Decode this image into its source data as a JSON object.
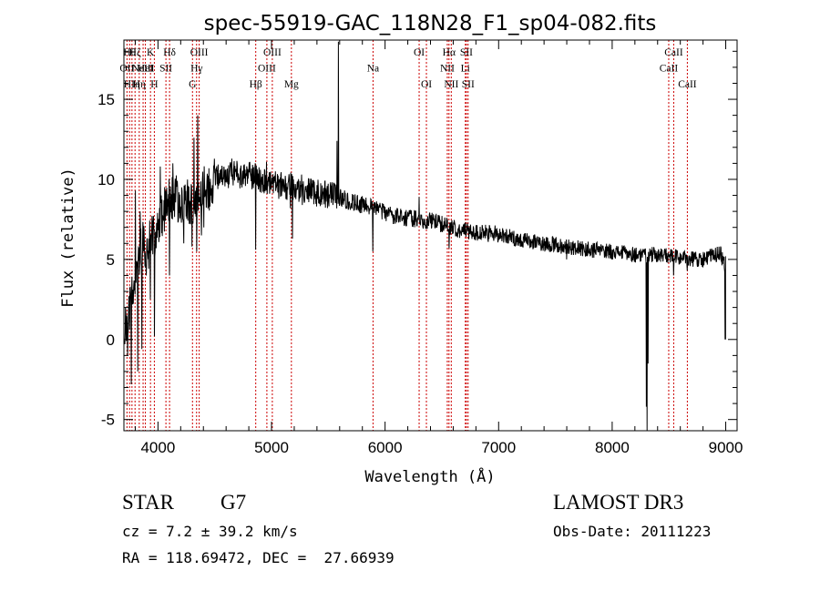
{
  "chart_data": {
    "type": "line",
    "title": "spec-55919-GAC_118N28_F1_sp04-082.fits",
    "xlabel": "Wavelength (Å)",
    "ylabel": "Flux (relative)",
    "xlim": [
      3700,
      9100
    ],
    "ylim": [
      -5.7,
      18.7
    ],
    "xticks": [
      4000,
      5000,
      6000,
      7000,
      8000,
      9000
    ],
    "yticks": [
      -5,
      0,
      5,
      10,
      15
    ],
    "line_color": "#000000",
    "marker_color": "#cc0000",
    "continuum": {
      "x": [
        3700,
        3740,
        3780,
        3820,
        3860,
        3900,
        3950,
        4000,
        4050,
        4100,
        4150,
        4200,
        4250,
        4300,
        4350,
        4400,
        4450,
        4500,
        4550,
        4600,
        4650,
        4700,
        4750,
        4800,
        4850,
        4900,
        4950,
        5000,
        5100,
        5200,
        5300,
        5400,
        5500,
        5600,
        5700,
        5800,
        5900,
        6000,
        6100,
        6200,
        6300,
        6400,
        6500,
        6600,
        6700,
        6800,
        6900,
        7000,
        7200,
        7400,
        7600,
        7800,
        8000,
        8200,
        8400,
        8600,
        8800,
        8950,
        9000
      ],
      "y": [
        1.0,
        1.6,
        3.2,
        5.0,
        6.0,
        5.7,
        6.3,
        7.1,
        8.1,
        8.6,
        9.0,
        8.6,
        8.8,
        8.5,
        9.1,
        9.6,
        9.5,
        9.9,
        10.2,
        10.3,
        10.3,
        10.3,
        10.1,
        10.2,
        10.2,
        10.0,
        9.7,
        9.8,
        9.6,
        9.6,
        9.3,
        9.1,
        9.0,
        8.9,
        8.6,
        8.4,
        8.2,
        7.9,
        7.7,
        7.6,
        7.5,
        7.4,
        7.2,
        7.0,
        6.8,
        6.7,
        6.6,
        6.6,
        6.2,
        6.0,
        5.8,
        5.6,
        5.5,
        5.3,
        5.3,
        5.1,
        5.0,
        5.4,
        4.5
      ]
    },
    "features": [
      {
        "x": 3732,
        "y": -1.0
      },
      {
        "x": 3765,
        "y": -2.8
      },
      {
        "x": 3800,
        "y": 9.3
      },
      {
        "x": 3822,
        "y": -2.0
      },
      {
        "x": 3842,
        "y": 8.0
      },
      {
        "x": 3858,
        "y": -0.6
      },
      {
        "x": 3897,
        "y": 4.0
      },
      {
        "x": 3934,
        "y": 2.5
      },
      {
        "x": 3968,
        "y": 0.2
      },
      {
        "x": 3990,
        "y": 7.2
      },
      {
        "x": 4020,
        "y": 10.8
      },
      {
        "x": 4101,
        "y": 4.0
      },
      {
        "x": 4130,
        "y": 11.0
      },
      {
        "x": 4226,
        "y": 6.0
      },
      {
        "x": 4300,
        "y": 5.8
      },
      {
        "x": 4318,
        "y": 12.6
      },
      {
        "x": 4340,
        "y": 5.5
      },
      {
        "x": 4351,
        "y": 14.0
      },
      {
        "x": 4383,
        "y": 6.5
      },
      {
        "x": 4405,
        "y": 7.0
      },
      {
        "x": 4650,
        "y": 11.3
      },
      {
        "x": 4861,
        "y": 5.6
      },
      {
        "x": 4957,
        "y": 11.1
      },
      {
        "x": 5167,
        "y": 8.2
      },
      {
        "x": 5183,
        "y": 6.3
      },
      {
        "x": 5270,
        "y": 8.4
      },
      {
        "x": 5578,
        "y": 12.4
      },
      {
        "x": 5590,
        "y": 18.6
      },
      {
        "x": 5893,
        "y": 5.5
      },
      {
        "x": 6300,
        "y": 8.9
      },
      {
        "x": 6563,
        "y": 5.7
      },
      {
        "x": 7600,
        "y": 5.0
      },
      {
        "x": 8300,
        "y": -4.2
      },
      {
        "x": 8308,
        "y": -5.7
      },
      {
        "x": 8316,
        "y": -1.5
      },
      {
        "x": 8540,
        "y": 4.0
      },
      {
        "x": 8662,
        "y": 4.3
      },
      {
        "x": 8998,
        "y": 0.0
      }
    ],
    "lines": [
      {
        "x": 3727,
        "label": "OII",
        "row": 1
      },
      {
        "x": 3750,
        "label": "Hθ",
        "row": 0
      },
      {
        "x": 3771,
        "label": "HIη",
        "row": 2
      },
      {
        "x": 3798,
        "label": "Hζ",
        "row": 0
      },
      {
        "x": 3835,
        "label": "Hη",
        "row": 2
      },
      {
        "x": 3869,
        "label": "NeIII",
        "row": 1
      },
      {
        "x": 3889,
        "label": "HeI",
        "row": 1
      },
      {
        "x": 3934,
        "label": "K",
        "row": 0
      },
      {
        "x": 3968,
        "label": "H",
        "row": 2
      },
      {
        "x": 4070,
        "label": "SII",
        "row": 1
      },
      {
        "x": 4102,
        "label": "Hδ",
        "row": 0
      },
      {
        "x": 4304,
        "label": "G",
        "row": 2
      },
      {
        "x": 4340,
        "label": "Hγ",
        "row": 1
      },
      {
        "x": 4363,
        "label": "OIII",
        "row": 0
      },
      {
        "x": 4861,
        "label": "Hβ",
        "row": 2
      },
      {
        "x": 4959,
        "label": "OIII",
        "row": 1
      },
      {
        "x": 5007,
        "label": "OIII",
        "row": 0
      },
      {
        "x": 5175,
        "label": "Mg",
        "row": 2
      },
      {
        "x": 5894,
        "label": "Na",
        "row": 1
      },
      {
        "x": 6300,
        "label": "OI",
        "row": 0
      },
      {
        "x": 6364,
        "label": "OI",
        "row": 2
      },
      {
        "x": 6548,
        "label": "NII",
        "row": 1
      },
      {
        "x": 6563,
        "label": "Hα",
        "row": 0
      },
      {
        "x": 6583,
        "label": "NII",
        "row": 2
      },
      {
        "x": 6707,
        "label": "Li",
        "row": 1
      },
      {
        "x": 6716,
        "label": "SII",
        "row": 0
      },
      {
        "x": 6731,
        "label": "SII",
        "row": 2
      },
      {
        "x": 8498,
        "label": "CaII",
        "row": 1
      },
      {
        "x": 8542,
        "label": "CaII",
        "row": 0
      },
      {
        "x": 8662,
        "label": "CaII",
        "row": 2
      }
    ]
  },
  "info": {
    "object_class": "STAR",
    "subclass": "G7",
    "cz": "cz = 7.2 ± 39.2 km/s",
    "coords": "RA = 118.69472, DEC =  27.66939",
    "survey": "LAMOST DR3",
    "obs_date": "Obs-Date: 20111223"
  }
}
